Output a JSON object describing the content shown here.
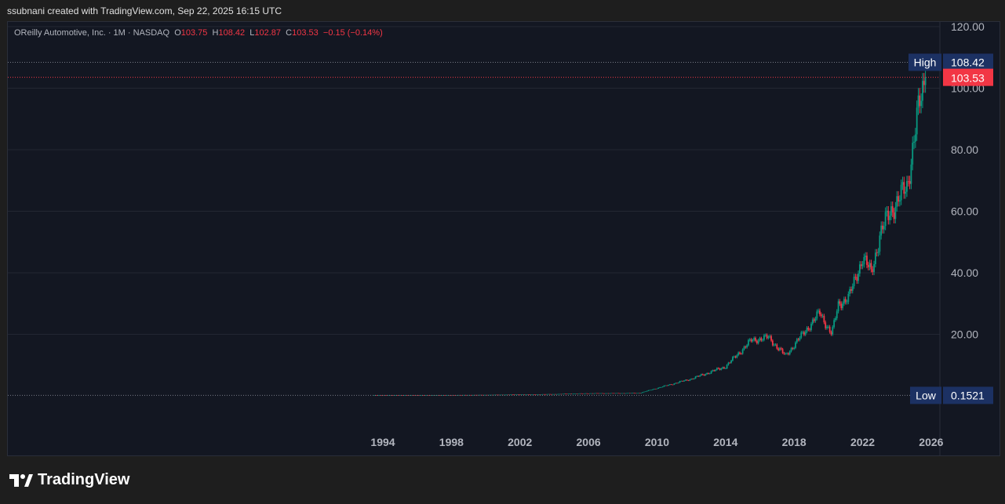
{
  "credit": "ssubnani created with TradingView.com, Sep 22, 2025 16:15 UTC",
  "legend": {
    "symbol": "OReilly Automotive, Inc. · 1M · NASDAQ",
    "o_label": "O",
    "o": "103.75",
    "h_label": "H",
    "h": "108.42",
    "l_label": "L",
    "l": "102.87",
    "c_label": "C",
    "c": "103.53",
    "change": "−0.15 (−0.14%)"
  },
  "logo": "TradingView",
  "colors": {
    "up": "#089981",
    "down": "#f23645",
    "bg": "#131722",
    "label": "#1c3163"
  },
  "chart_data": {
    "type": "candlestick",
    "interval": "1M",
    "ylim": [
      0,
      120
    ],
    "y_ticks": [
      "20.00",
      "40.00",
      "60.00",
      "80.00",
      "100.00",
      "120.00"
    ],
    "x_ticks": [
      "1994",
      "1998",
      "2002",
      "2006",
      "2010",
      "2014",
      "2018",
      "2022",
      "2026"
    ],
    "high_label": "High",
    "high": "108.42",
    "low_label": "Low",
    "low": "0.1521",
    "last_price": "103.53",
    "grid": true,
    "approx_closes": [
      [
        1993.5,
        0.15
      ],
      [
        1996,
        0.18
      ],
      [
        2000,
        0.3
      ],
      [
        2004,
        0.55
      ],
      [
        2006,
        0.8
      ],
      [
        2008,
        0.85
      ],
      [
        2009,
        0.9
      ],
      [
        2010,
        2.5
      ],
      [
        2012,
        5.5
      ],
      [
        2014,
        9.5
      ],
      [
        2015.5,
        18
      ],
      [
        2016.5,
        19
      ],
      [
        2017.5,
        13
      ],
      [
        2018.5,
        20
      ],
      [
        2019.5,
        27
      ],
      [
        2020.2,
        20
      ],
      [
        2020.6,
        30
      ],
      [
        2021.2,
        32
      ],
      [
        2022,
        45
      ],
      [
        2022.5,
        40
      ],
      [
        2023,
        52
      ],
      [
        2023.6,
        60
      ],
      [
        2024,
        63
      ],
      [
        2024.6,
        68
      ],
      [
        2025.1,
        88
      ],
      [
        2025.4,
        96
      ],
      [
        2025.7,
        103.53
      ]
    ]
  }
}
